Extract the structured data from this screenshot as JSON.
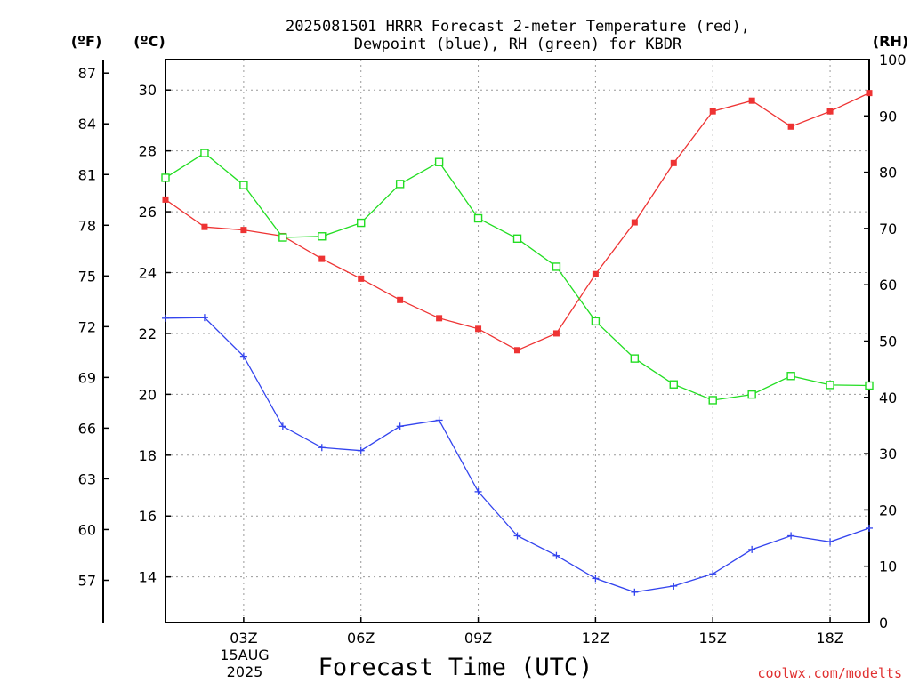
{
  "chart_data": {
    "type": "line",
    "title_line1": "2025081501 HRRR Forecast 2-meter Temperature (red),",
    "title_line2": "Dewpoint (blue), RH (green) for KBDR",
    "xlabel": "Forecast Time (UTC)",
    "date_label": [
      "15AUG",
      "2025"
    ],
    "credit": "coolwx.com/modelts",
    "left_outer_unit": "(ºF)",
    "left_inner_unit": "(ºC)",
    "right_unit": "(RH)",
    "x_range": [
      1,
      19
    ],
    "x_ticks": [
      {
        "hour": 3,
        "label": "03Z"
      },
      {
        "hour": 6,
        "label": "06Z"
      },
      {
        "hour": 9,
        "label": "09Z"
      },
      {
        "hour": 12,
        "label": "12Z"
      },
      {
        "hour": 15,
        "label": "15Z"
      },
      {
        "hour": 18,
        "label": "18Z"
      }
    ],
    "y_c_range": [
      12.5,
      31
    ],
    "y_c_ticks": [
      "14",
      "16",
      "18",
      "20",
      "22",
      "24",
      "26",
      "28",
      "30"
    ],
    "y_f_ticks": [
      "57",
      "60",
      "63",
      "66",
      "69",
      "72",
      "75",
      "78",
      "81",
      "84",
      "87"
    ],
    "y_rh_range": [
      0,
      100
    ],
    "y_rh_ticks": [
      "0",
      "10",
      "20",
      "30",
      "40",
      "50",
      "60",
      "70",
      "80",
      "90",
      "100"
    ],
    "grid": true,
    "series": [
      {
        "name": "Temperature",
        "color": "#ee3333",
        "axis": "C",
        "marker": "filled-square",
        "hours": [
          1,
          2,
          3,
          4,
          5,
          6,
          7,
          8,
          9,
          10,
          11,
          12,
          13,
          14,
          15,
          16,
          17,
          18,
          19
        ],
        "values": [
          26.4,
          25.5,
          25.4,
          25.2,
          24.45,
          23.8,
          23.1,
          22.5,
          22.15,
          21.45,
          22.0,
          23.95,
          25.65,
          27.6,
          29.3,
          29.65,
          28.8,
          29.3,
          29.9
        ]
      },
      {
        "name": "Dewpoint",
        "color": "#3344ee",
        "axis": "C",
        "marker": "plus",
        "hours": [
          1,
          2,
          3,
          4,
          5,
          6,
          7,
          8,
          9,
          10,
          11,
          12,
          13,
          14,
          15,
          16,
          17,
          18,
          19
        ],
        "values": [
          22.5,
          22.52,
          21.25,
          18.95,
          18.25,
          18.15,
          18.95,
          19.15,
          16.8,
          15.35,
          14.7,
          13.95,
          13.5,
          13.7,
          14.1,
          14.9,
          15.35,
          15.15,
          15.6
        ]
      },
      {
        "name": "RH",
        "color": "#22dd22",
        "axis": "RH",
        "marker": "open-square",
        "hours": [
          1,
          2,
          3,
          4,
          5,
          6,
          7,
          8,
          9,
          10,
          11,
          12,
          13,
          14,
          15,
          16,
          17,
          18,
          19
        ],
        "values": [
          79,
          83.4,
          77.7,
          68.4,
          68.6,
          71,
          77.9,
          81.8,
          71.8,
          68.2,
          63.2,
          53.5,
          46.9,
          42.3,
          39.5,
          40.5,
          43.8,
          42.2,
          42.1
        ]
      }
    ]
  }
}
